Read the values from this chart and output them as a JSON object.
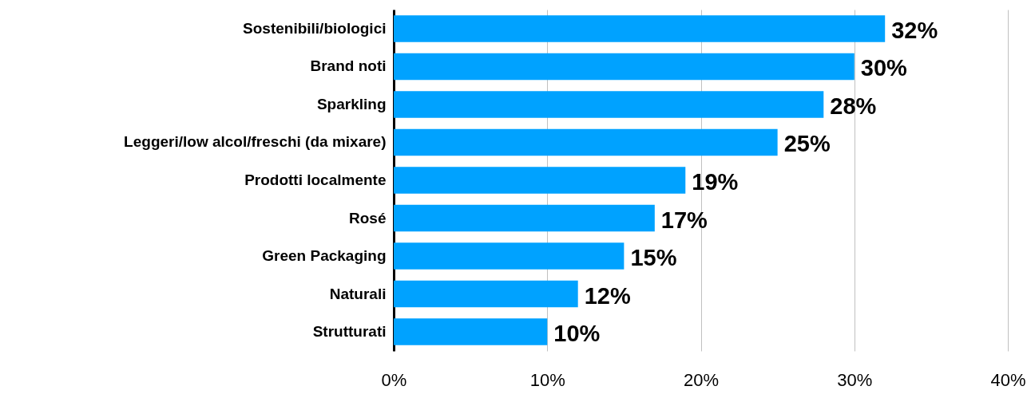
{
  "chart_data": {
    "type": "bar",
    "orientation": "horizontal",
    "categories": [
      "Sostenibili/biologici",
      "Brand noti",
      "Sparkling",
      "Leggeri/low alcol/freschi (da mixare)",
      "Prodotti localmente",
      "Rosé",
      "Green Packaging",
      "Naturali",
      "Strutturati"
    ],
    "values": [
      32,
      30,
      28,
      25,
      19,
      17,
      15,
      12,
      10
    ],
    "value_labels": [
      "32%",
      "30%",
      "28%",
      "25%",
      "19%",
      "17%",
      "15%",
      "12%",
      "10%"
    ],
    "color": "#00a2ff",
    "xlim": [
      0,
      40
    ],
    "xticks": [
      {
        "value": 0,
        "label": "0%"
      },
      {
        "value": 10,
        "label": "10%"
      },
      {
        "value": 20,
        "label": "20%"
      },
      {
        "value": 30,
        "label": "30%"
      },
      {
        "value": 40,
        "label": "40%"
      }
    ],
    "grid": "x"
  }
}
